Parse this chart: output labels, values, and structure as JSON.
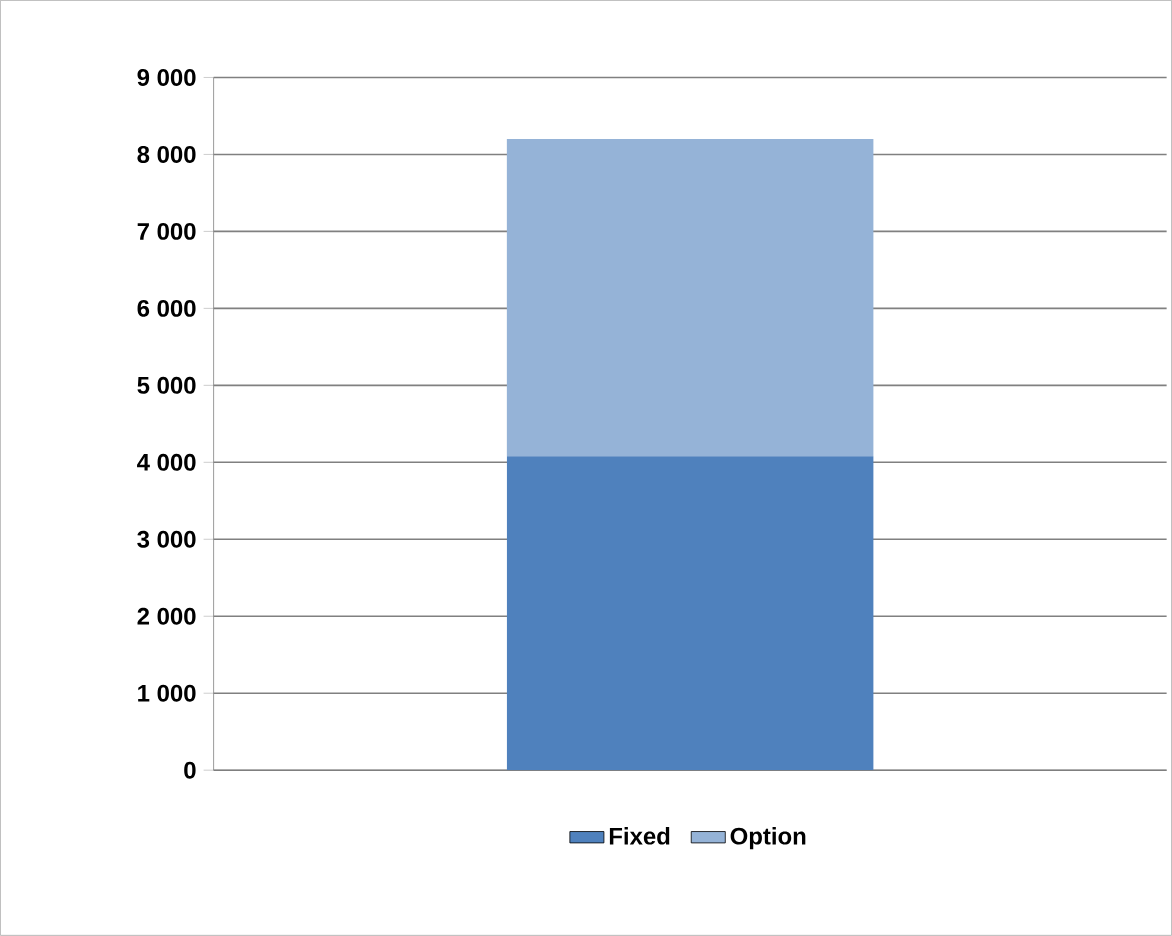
{
  "chart_data": {
    "type": "bar",
    "stacked": true,
    "categories": [
      null
    ],
    "series": [
      {
        "name": "Fixed",
        "color": "#4f81bd",
        "values": [
          4080
        ]
      },
      {
        "name": "Option",
        "color": "#95b3d7",
        "values": [
          4120
        ]
      }
    ],
    "ylim": [
      0,
      9000
    ],
    "yticks": [
      0,
      {
        "value": 1000,
        "label": "1 000"
      },
      {
        "value": 2000,
        "label": "2 000"
      },
      {
        "value": 3000,
        "label": "3 000"
      },
      {
        "value": 4000,
        "label": "4 000"
      },
      {
        "value": 5000,
        "label": "5 000"
      },
      {
        "value": 6000,
        "label": "6 000"
      },
      {
        "value": 7000,
        "label": "7 000"
      },
      {
        "value": 8000,
        "label": "8 000"
      },
      {
        "value": 9000,
        "label": "9 000"
      }
    ],
    "grid": "y",
    "legend": "bottom"
  }
}
